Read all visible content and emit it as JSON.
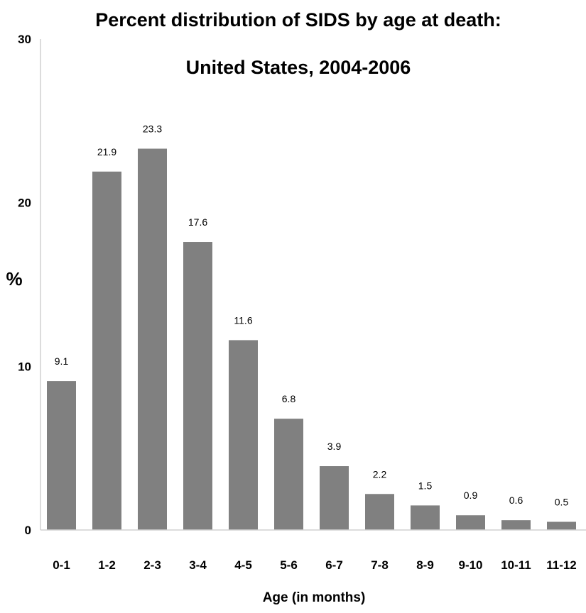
{
  "chart_data": {
    "type": "bar",
    "title_line1": "Percent distribution of SIDS by age at death:",
    "title_line2": "United States, 2004-2006",
    "xlabel": "Age (in months)",
    "ylabel": "%",
    "ylim": [
      0,
      30
    ],
    "yticks": [
      0,
      10,
      20,
      30
    ],
    "categories": [
      "0-1",
      "1-2",
      "2-3",
      "3-4",
      "4-5",
      "5-6",
      "6-7",
      "7-8",
      "8-9",
      "9-10",
      "10-11",
      "11-12"
    ],
    "values": [
      9.1,
      21.9,
      23.3,
      17.6,
      11.6,
      6.8,
      3.9,
      2.2,
      1.5,
      0.9,
      0.6,
      0.5
    ],
    "data_labels": [
      "9.1",
      "21.9",
      "23.3",
      "17.6",
      "11.6",
      "6.8",
      "3.9",
      "2.2",
      "1.5",
      "0.9",
      "0.6",
      "0.5"
    ],
    "bar_color": "#808080",
    "axis_color": "#d0d0d0",
    "grid": false,
    "legend": "none"
  }
}
